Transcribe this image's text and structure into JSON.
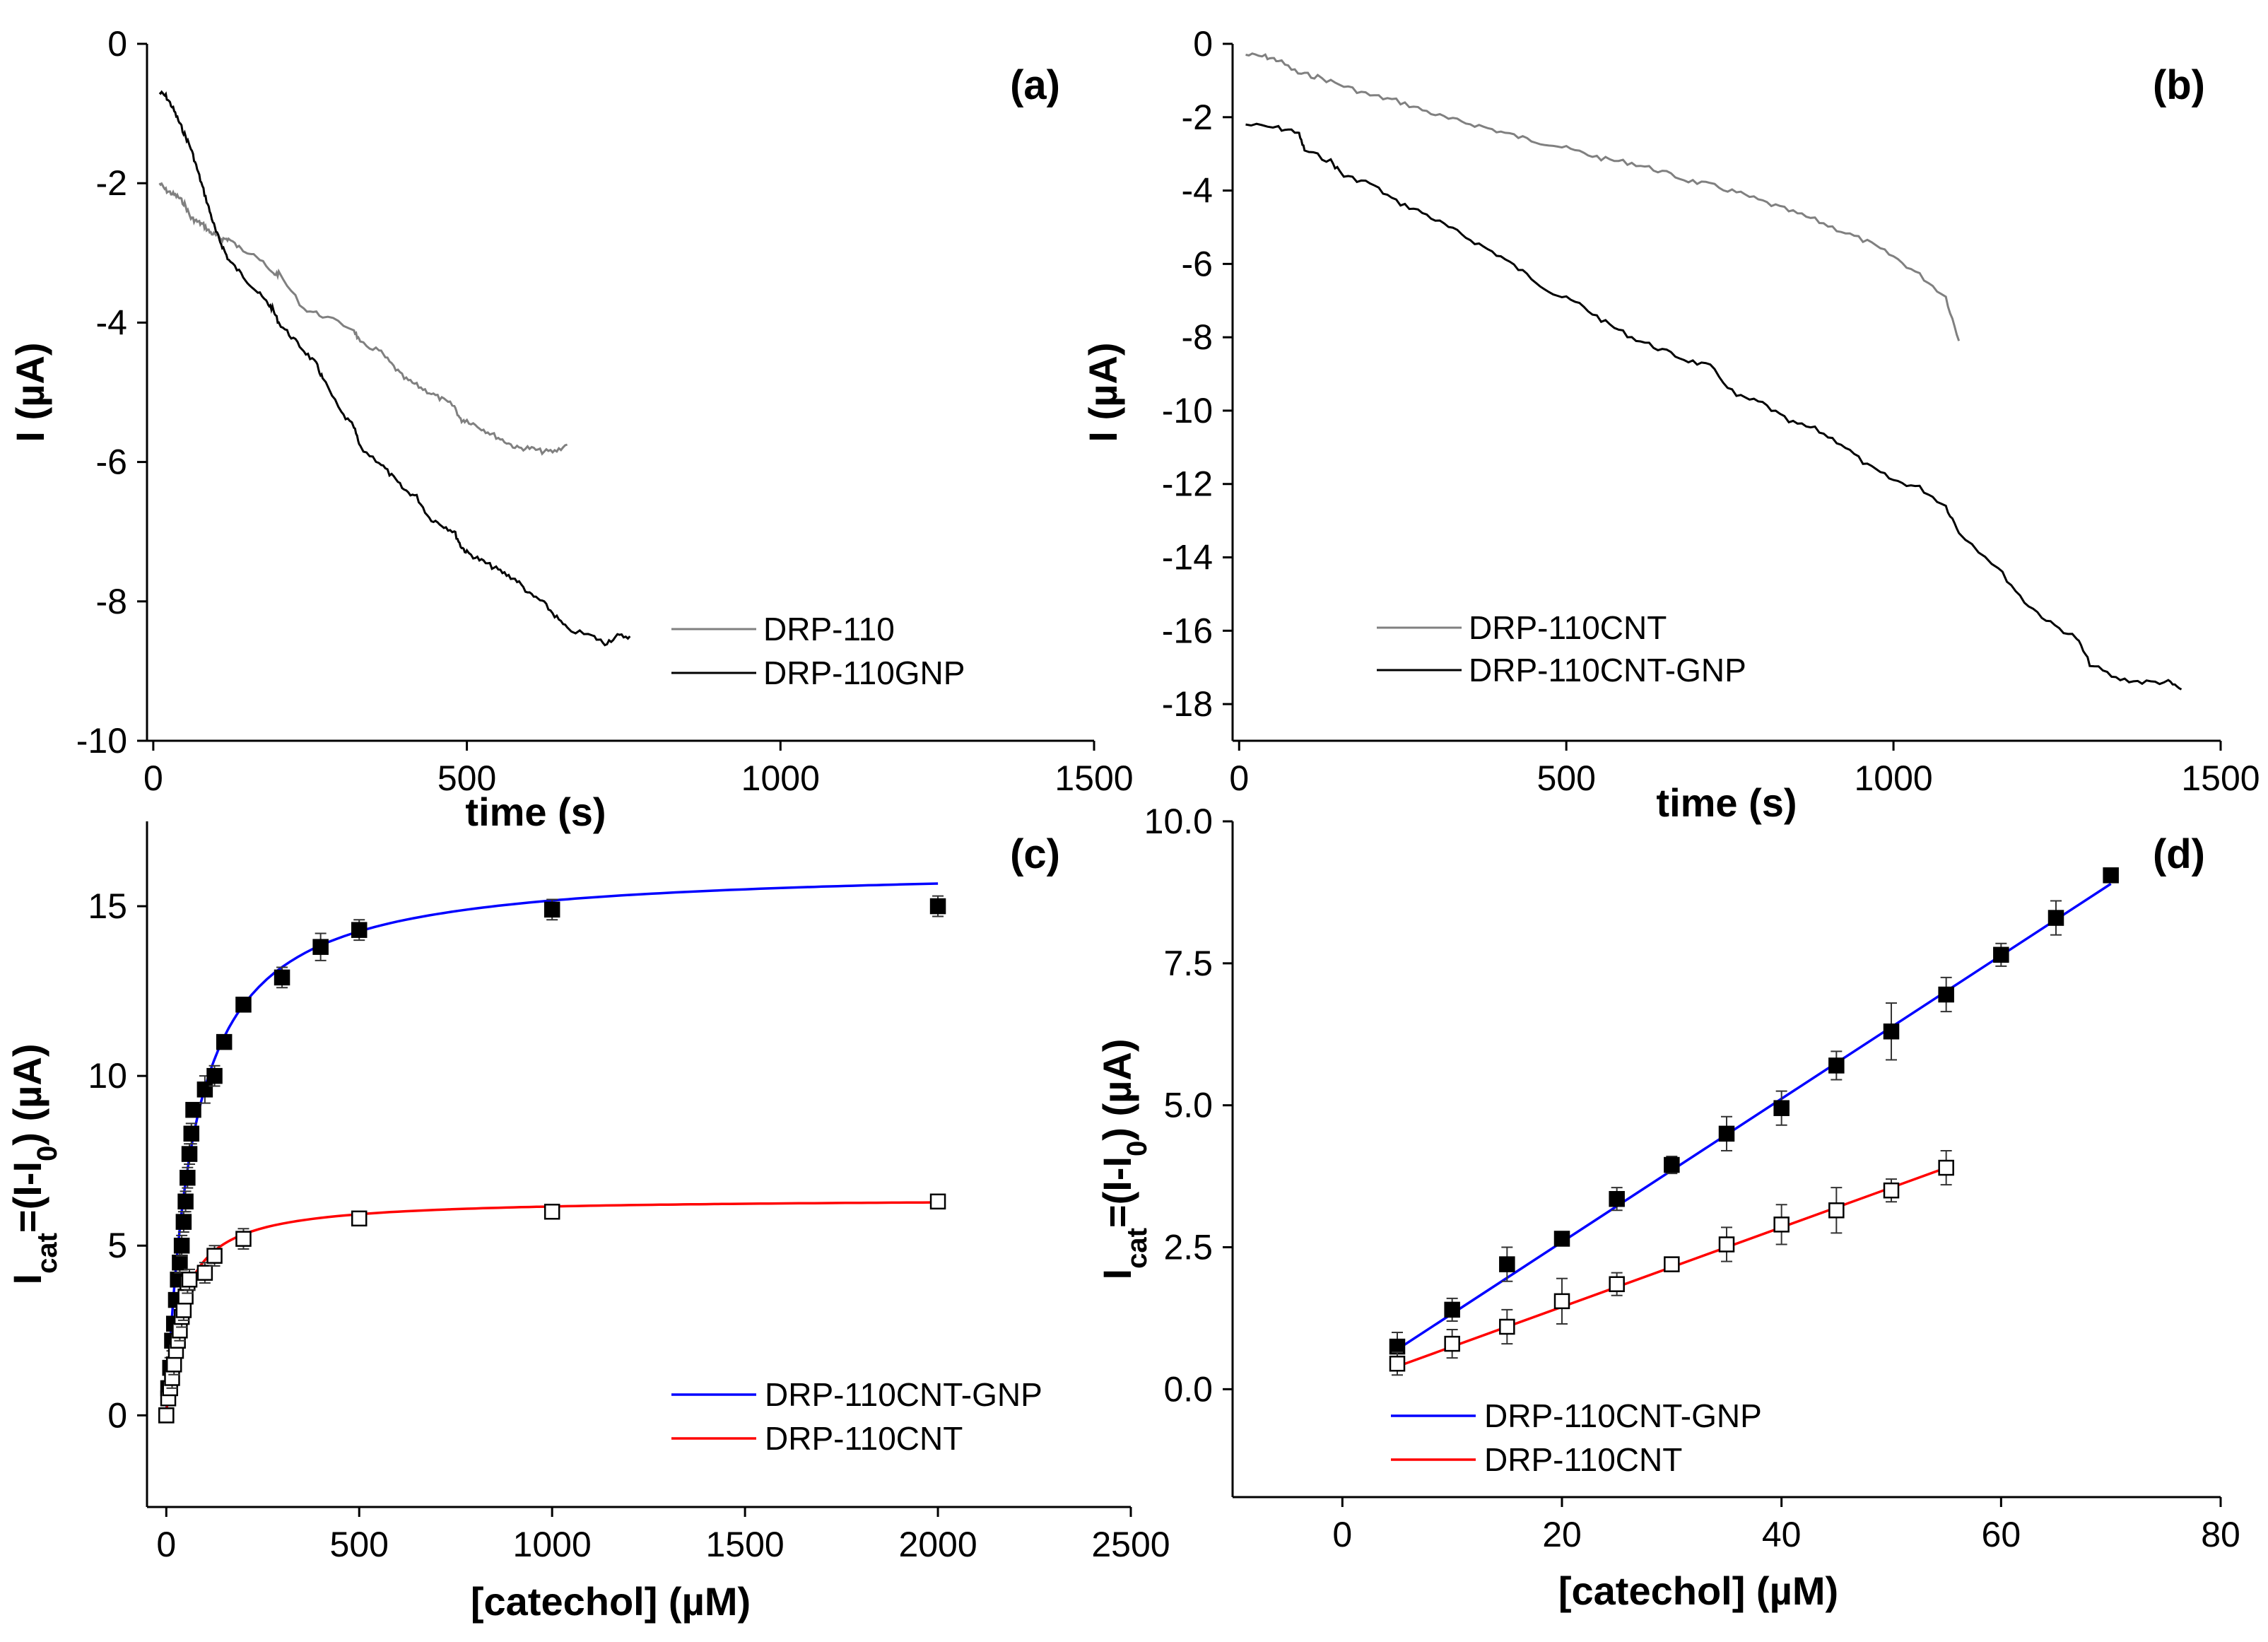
{
  "chart_data": [
    {
      "id": "a",
      "type": "line",
      "panel_label": "(a)",
      "xlabel": "time (s)",
      "ylabel": "I (µA)",
      "xlim": [
        -10,
        1500
      ],
      "ylim": [
        -10,
        0
      ],
      "xticks": [
        0,
        500,
        1000,
        1500
      ],
      "yticks": [
        0,
        -2,
        -4,
        -6,
        -8,
        -10
      ],
      "legend_position": "lower-right",
      "series": [
        {
          "name": "DRP-110",
          "color": "#808080",
          "x": [
            10,
            20,
            30,
            40,
            50,
            60,
            70,
            80,
            90,
            100,
            110,
            120,
            140,
            160,
            190,
            200,
            240,
            270,
            320,
            330,
            360,
            380,
            400,
            420,
            440,
            460,
            480,
            490,
            500,
            520,
            540,
            560,
            580,
            600,
            620,
            640,
            660
          ],
          "y": [
            -2.0,
            -2.1,
            -2.15,
            -2.2,
            -2.3,
            -2.5,
            -2.55,
            -2.6,
            -2.7,
            -2.75,
            -2.8,
            -2.8,
            -2.95,
            -3.0,
            -3.3,
            -3.3,
            -3.8,
            -3.9,
            -4.1,
            -4.3,
            -4.4,
            -4.6,
            -4.8,
            -4.9,
            -5.0,
            -5.1,
            -5.2,
            -5.4,
            -5.4,
            -5.5,
            -5.6,
            -5.7,
            -5.8,
            -5.8,
            -5.85,
            -5.85,
            -5.75
          ]
        },
        {
          "name": "DRP-110GNP",
          "color": "#000000",
          "x": [
            10,
            20,
            30,
            40,
            50,
            60,
            70,
            80,
            90,
            100,
            110,
            120,
            140,
            160,
            180,
            190,
            200,
            220,
            240,
            260,
            270,
            300,
            320,
            330,
            360,
            380,
            400,
            420,
            440,
            460,
            480,
            490,
            500,
            520,
            540,
            560,
            580,
            600,
            620,
            640,
            660,
            700,
            720,
            740,
            760
          ],
          "y": [
            -0.7,
            -0.75,
            -0.9,
            -1.1,
            -1.3,
            -1.5,
            -1.8,
            -2.1,
            -2.4,
            -2.7,
            -2.9,
            -3.1,
            -3.3,
            -3.5,
            -3.7,
            -3.8,
            -4.0,
            -4.2,
            -4.4,
            -4.6,
            -4.8,
            -5.3,
            -5.5,
            -5.8,
            -6.0,
            -6.2,
            -6.4,
            -6.5,
            -6.8,
            -6.9,
            -7.0,
            -7.2,
            -7.3,
            -7.4,
            -7.5,
            -7.6,
            -7.7,
            -7.9,
            -8.0,
            -8.2,
            -8.4,
            -8.5,
            -8.6,
            -8.5,
            -8.5
          ]
        }
      ]
    },
    {
      "id": "b",
      "type": "line",
      "panel_label": "(b)",
      "xlabel": "time (s)",
      "ylabel": "I (µA)",
      "xlim": [
        -10,
        1500
      ],
      "ylim": [
        -19,
        0
      ],
      "xticks": [
        0,
        500,
        1000,
        1500
      ],
      "yticks": [
        0,
        -2,
        -4,
        -6,
        -8,
        -10,
        -12,
        -14,
        -16,
        -18
      ],
      "legend_position": "lower-left",
      "series": [
        {
          "name": "DRP-110CNT",
          "color": "#808080",
          "x": [
            10,
            40,
            60,
            90,
            120,
            160,
            200,
            240,
            280,
            320,
            360,
            400,
            440,
            480,
            520,
            560,
            600,
            640,
            680,
            720,
            760,
            800,
            840,
            880,
            920,
            960,
            1000,
            1040,
            1080,
            1100
          ],
          "y": [
            -0.3,
            -0.35,
            -0.45,
            -0.8,
            -0.9,
            -1.15,
            -1.4,
            -1.55,
            -1.8,
            -2.05,
            -2.2,
            -2.4,
            -2.6,
            -2.75,
            -2.95,
            -3.15,
            -3.25,
            -3.45,
            -3.7,
            -3.85,
            -4.05,
            -4.3,
            -4.55,
            -4.8,
            -5.1,
            -5.4,
            -5.8,
            -6.3,
            -6.9,
            -8.1
          ]
        },
        {
          "name": "DRP-110CNT-GNP",
          "color": "#000000",
          "x": [
            10,
            60,
            90,
            100,
            140,
            160,
            200,
            240,
            280,
            320,
            360,
            400,
            440,
            480,
            520,
            560,
            600,
            640,
            680,
            720,
            760,
            800,
            840,
            880,
            920,
            960,
            1000,
            1040,
            1080,
            1100,
            1160,
            1200,
            1240,
            1280,
            1300,
            1340,
            1380,
            1420,
            1440
          ],
          "y": [
            -2.2,
            -2.3,
            -2.4,
            -2.9,
            -3.2,
            -3.6,
            -3.8,
            -4.3,
            -4.6,
            -5.0,
            -5.4,
            -5.8,
            -6.3,
            -6.8,
            -7.1,
            -7.6,
            -8.0,
            -8.3,
            -8.6,
            -8.8,
            -9.6,
            -9.8,
            -10.3,
            -10.5,
            -10.9,
            -11.5,
            -11.9,
            -12.1,
            -12.6,
            -13.3,
            -14.3,
            -15.2,
            -15.8,
            -16.2,
            -16.9,
            -17.3,
            -17.4,
            -17.4,
            -17.6
          ]
        }
      ]
    },
    {
      "id": "c",
      "type": "scatter",
      "panel_label": "(c)",
      "xlabel": "[catechol] (µM)",
      "ylabel": "I_cat=(I-I_0) (µA)",
      "xlim": [
        -50,
        2500
      ],
      "ylim": [
        -2.7,
        17.5
      ],
      "xticks": [
        0,
        500,
        1000,
        1500,
        2000,
        2500
      ],
      "yticks": [
        0,
        5,
        10,
        15
      ],
      "legend_position": "lower-right",
      "fits": [
        {
          "name": "DRP-110CNT-GNP",
          "color": "#0000ff",
          "model": "michaelis-menten",
          "imax": 16.2,
          "km": 68
        },
        {
          "name": "DRP-110CNT",
          "color": "#ff0000",
          "model": "michaelis-menten",
          "imax": 6.4,
          "km": 40
        }
      ],
      "series": [
        {
          "name": "DRP-110CNT-GNP points",
          "marker": "filled-square",
          "x": [
            0,
            5,
            10,
            15,
            20,
            25,
            30,
            35,
            40,
            45,
            50,
            55,
            60,
            65,
            70,
            100,
            125,
            150,
            200,
            300,
            400,
            500,
            1000,
            2000
          ],
          "y": [
            0.0,
            0.8,
            1.4,
            2.2,
            2.7,
            3.4,
            4.0,
            4.5,
            5.0,
            5.7,
            6.3,
            7.0,
            7.7,
            8.3,
            9.0,
            9.6,
            10.0,
            11.0,
            12.1,
            12.9,
            13.8,
            14.3,
            14.9,
            15.0
          ],
          "err": [
            0,
            0.2,
            0.3,
            0.3,
            0.2,
            0.2,
            0.2,
            0.3,
            0.3,
            0.3,
            0.3,
            0.3,
            0.3,
            0.3,
            0.2,
            0.4,
            0.3,
            0.2,
            0.2,
            0.3,
            0.4,
            0.3,
            0.3,
            0.3
          ]
        },
        {
          "name": "DRP-110CNT points",
          "marker": "open-square",
          "x": [
            0,
            5,
            10,
            15,
            20,
            25,
            30,
            35,
            40,
            45,
            50,
            55,
            60,
            100,
            125,
            200,
            500,
            1000,
            2000
          ],
          "y": [
            0.0,
            0.5,
            0.8,
            1.1,
            1.5,
            1.9,
            2.2,
            2.5,
            2.9,
            3.1,
            3.5,
            3.9,
            4.0,
            4.2,
            4.7,
            5.2,
            5.8,
            6.0,
            6.3
          ],
          "err": [
            0,
            0.2,
            0.2,
            0.3,
            0.3,
            0.2,
            0.2,
            0.3,
            0.3,
            0.3,
            0.2,
            0.3,
            0.3,
            0.3,
            0.3,
            0.3,
            0.2,
            0.2,
            0.2
          ]
        }
      ]
    },
    {
      "id": "d",
      "type": "scatter",
      "panel_label": "(d)",
      "xlabel": "[catechol] (µM)",
      "ylabel": "I_cat=(I-I_0) (µA)",
      "xlim": [
        -10,
        80
      ],
      "ylim": [
        -1.9,
        10
      ],
      "xticks": [
        0,
        20,
        40,
        60,
        80
      ],
      "yticks": [
        0.0,
        2.5,
        5.0,
        7.5,
        10.0
      ],
      "ytick_format": "one_decimal",
      "legend_position": "lower-left",
      "fits": [
        {
          "name": "DRP-110CNT-GNP",
          "color": "#0000ff",
          "model": "linear",
          "x": [
            5,
            70
          ],
          "y": [
            0.7,
            8.9
          ]
        },
        {
          "name": "DRP-110CNT",
          "color": "#ff0000",
          "model": "linear",
          "x": [
            5,
            55
          ],
          "y": [
            0.4,
            3.9
          ]
        }
      ],
      "series": [
        {
          "name": "DRP-110CNT-GNP points",
          "marker": "filled-square",
          "x": [
            5,
            10,
            15,
            20,
            25,
            30,
            35,
            40,
            45,
            50,
            55,
            60,
            65,
            70
          ],
          "y": [
            0.75,
            1.4,
            2.2,
            2.65,
            3.35,
            3.95,
            4.5,
            4.95,
            5.7,
            6.3,
            6.95,
            7.65,
            8.3,
            9.05
          ],
          "err": [
            0.25,
            0.2,
            0.3,
            0.1,
            0.2,
            0.15,
            0.3,
            0.3,
            0.25,
            0.5,
            0.3,
            0.2,
            0.3,
            0.1
          ]
        },
        {
          "name": "DRP-110CNT points",
          "marker": "open-square",
          "x": [
            5,
            10,
            15,
            20,
            25,
            30,
            35,
            40,
            45,
            50,
            55
          ],
          "y": [
            0.45,
            0.8,
            1.1,
            1.55,
            1.85,
            2.2,
            2.55,
            2.9,
            3.15,
            3.5,
            3.9
          ],
          "err": [
            0.2,
            0.25,
            0.3,
            0.4,
            0.2,
            0.1,
            0.3,
            0.35,
            0.4,
            0.2,
            0.3
          ]
        }
      ]
    }
  ]
}
